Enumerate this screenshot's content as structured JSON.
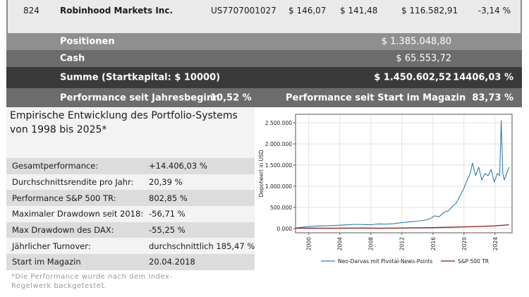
{
  "stock_row": {
    "rank": "824",
    "name": "Robinhood Markets Inc.",
    "isin": "US7707001027",
    "price_buy": "$ 146,07",
    "price_now": "$ 141,48",
    "value": "$ 116.582,91",
    "change": "-3,14 %"
  },
  "summary": {
    "positions_label": "Positionen",
    "positions_value": "$ 1.385.048,80",
    "cash_label": "Cash",
    "cash_value": "$ 65.553,72",
    "sum_label": "Summe (Startkapital: $ 10000)",
    "sum_value": "$ 1.450.602,52",
    "sum_pct": "14406,03 %",
    "ytd_label": "Performance seit Jahresbeginn",
    "ytd_value": "10,52 %",
    "magazin_label": "Performance seit Start im Magazin",
    "magazin_value": "83,73 %"
  },
  "left_panel": {
    "title_line1": "Empirische Entwicklung des Portfolio-Systems",
    "title_line2": "von 1998 bis 2025*",
    "stats": [
      {
        "label": "Gesamtperformance:",
        "value": "+14.406,03 %"
      },
      {
        "label": "Durchschnittsrendite pro Jahr:",
        "value": "20,39 %"
      },
      {
        "label": "Performance S&P 500 TR:",
        "value": "802,85 %"
      },
      {
        "label": "Maximaler Drawdown seit 2018:",
        "value": "-56,71 %"
      },
      {
        "label": "Max Drawdown des DAX:",
        "value": "-55,25 %"
      },
      {
        "label": "Jährlicher Turnover:",
        "value": "durchschnittlich 185,47 %"
      },
      {
        "label": "Start im Magazin",
        "value": "20.04.2018"
      }
    ],
    "footnote_line1": "*Die Performance wurde nach dem Index-",
    "footnote_line2": "Regelwerk backgetestet."
  },
  "colors": {
    "neo": "#2f7fb0",
    "sp500": "#8b1a1a"
  },
  "chart_data": {
    "type": "line",
    "ylabel": "Depotwert in USD",
    "xlim": [
      1998.3,
      2026.2
    ],
    "ylim": [
      -100000,
      2700000
    ],
    "yticks": [
      0,
      500000,
      1000000,
      1500000,
      2000000,
      2500000
    ],
    "ytick_labels": [
      "0.000",
      "500.000",
      "1.000.000",
      "1.500.000",
      "2.000.000",
      "2.500.000"
    ],
    "xticks": [
      2000,
      2004,
      2008,
      2012,
      2016,
      2020,
      2024
    ],
    "xtick_labels": [
      "2000",
      "2004",
      "2008",
      "2012",
      "2016",
      "2020",
      "2024"
    ],
    "grid": true,
    "legend_position": "bottom",
    "series": [
      {
        "name": "Neo-Darvas mit Pivotal-News-Points",
        "x": [
          1998.3,
          1999.0,
          2000.0,
          2001.0,
          2002.0,
          2003.0,
          2004.0,
          2005.0,
          2006.0,
          2007.0,
          2008.0,
          2009.0,
          2010.0,
          2011.0,
          2012.0,
          2013.0,
          2014.0,
          2015.0,
          2015.6,
          2016.2,
          2016.8,
          2017.4,
          2018.0,
          2018.5,
          2019.0,
          2019.5,
          2020.0,
          2020.3,
          2020.8,
          2021.1,
          2021.5,
          2021.9,
          2022.3,
          2022.7,
          2023.1,
          2023.5,
          2023.9,
          2024.3,
          2024.6,
          2024.8,
          2025.0,
          2025.2,
          2025.5,
          2025.8
        ],
        "y": [
          10000,
          30000,
          50000,
          60000,
          65000,
          70000,
          80000,
          90000,
          100000,
          95000,
          90000,
          110000,
          105000,
          115000,
          140000,
          160000,
          175000,
          200000,
          230000,
          300000,
          280000,
          380000,
          420000,
          520000,
          600000,
          780000,
          950000,
          1100000,
          1300000,
          1550000,
          1250000,
          1450000,
          1150000,
          1300000,
          1250000,
          1400000,
          1100000,
          1300000,
          1250000,
          2550000,
          1300000,
          1150000,
          1300000,
          1450000
        ]
      },
      {
        "name": "S&P 500 TR",
        "x": [
          1998.3,
          2000.0,
          2002.5,
          2007.0,
          2009.0,
          2013.0,
          2016.0,
          2018.0,
          2020.0,
          2022.0,
          2024.0,
          2025.8
        ],
        "y": [
          10000,
          12000,
          8000,
          13000,
          8000,
          16000,
          22000,
          30000,
          40000,
          50000,
          65000,
          90000
        ]
      }
    ]
  }
}
